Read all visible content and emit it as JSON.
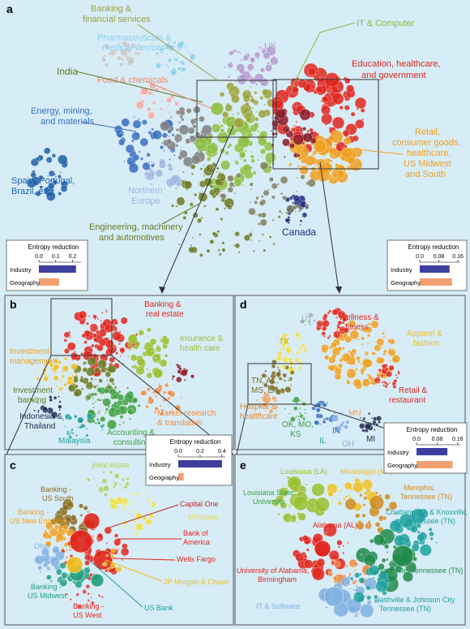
{
  "colors": {
    "background": "#d6ecf6",
    "industry_bar": "#3d3f9e",
    "geography_bar": "#f0a070",
    "frame": "#555555"
  },
  "panels": {
    "a": {
      "label": "a",
      "annotations": [
        {
          "text": "Banking &",
          "color": "#9aa33a"
        },
        {
          "text": "financial services",
          "color": "#9aa33a"
        },
        {
          "text": "IT & Computer",
          "color": "#8db83a"
        },
        {
          "text": "Pharmaceuticals &",
          "color": "#8fd0ea"
        },
        {
          "text": "medical devices",
          "color": "#8fd0ea"
        },
        {
          "text": "UK",
          "color": "#b39ad0"
        },
        {
          "text": "India",
          "color": "#5a7a1a"
        },
        {
          "text": "Food & chemicals",
          "color": "#f08a70"
        },
        {
          "text": "Education, healthcare,",
          "color": "#e0261d"
        },
        {
          "text": "and government",
          "color": "#e0261d"
        },
        {
          "text": "Energy, mining,",
          "color": "#3a6fc0"
        },
        {
          "text": "and materials",
          "color": "#3a6fc0"
        },
        {
          "text": "Retail,",
          "color": "#f0a020"
        },
        {
          "text": "consumer goods,",
          "color": "#f0a020"
        },
        {
          "text": "healthcare,",
          "color": "#f0a020"
        },
        {
          "text": "US Midwest",
          "color": "#f0a020"
        },
        {
          "text": "and South",
          "color": "#f0a020"
        },
        {
          "text": "Spain, Portugal,",
          "color": "#1f5fa8"
        },
        {
          "text": "Brazil, etc.",
          "color": "#1f5fa8"
        },
        {
          "text": "Northern",
          "color": "#9fb6e0"
        },
        {
          "text": "Europe",
          "color": "#9fb6e0"
        },
        {
          "text": "Canada",
          "color": "#1e2a80"
        },
        {
          "text": "Engineering, machinery",
          "color": "#6b7a22"
        },
        {
          "text": "and automotives",
          "color": "#6b7a22"
        }
      ]
    },
    "b": {
      "label": "b",
      "annotations": [
        {
          "text": "Banking &",
          "color": "#e0261d"
        },
        {
          "text": "real estate",
          "color": "#e0261d"
        },
        {
          "text": "Insurance &",
          "color": "#9ac030"
        },
        {
          "text": "health care",
          "color": "#9ac030"
        },
        {
          "text": "Investment",
          "color": "#f0a020"
        },
        {
          "text": "management",
          "color": "#f0a020"
        },
        {
          "text": "Investment",
          "color": "#5a7a1a"
        },
        {
          "text": "banking",
          "color": "#5a7a1a"
        },
        {
          "text": "Indonesia &",
          "color": "#1e2a50"
        },
        {
          "text": "Thailand",
          "color": "#1e2a50"
        },
        {
          "text": "Market research",
          "color": "#f08a40"
        },
        {
          "text": "& translation",
          "color": "#f08a40"
        },
        {
          "text": "Malaysia",
          "color": "#20a0a0"
        },
        {
          "text": "Accounting &",
          "color": "#40a040"
        },
        {
          "text": "consulting",
          "color": "#40a040"
        }
      ]
    },
    "c": {
      "label": "c",
      "annotations": [
        {
          "text": "Real estate",
          "color": "#b0d060"
        },
        {
          "text": "Banking -",
          "color": "#8a6a20"
        },
        {
          "text": "US South",
          "color": "#8a6a20"
        },
        {
          "text": "Capital One",
          "color": "#c0282a"
        },
        {
          "text": "Mortgage",
          "color": "#f0e040"
        },
        {
          "text": "Banking -",
          "color": "#f0a020"
        },
        {
          "text": "US New England",
          "color": "#f0a020"
        },
        {
          "text": "Bank of",
          "color": "#e0261d"
        },
        {
          "text": "America",
          "color": "#e0261d"
        },
        {
          "text": "Ohio",
          "color": "#80b0e0"
        },
        {
          "text": "Wells Fargo",
          "color": "#e0261d"
        },
        {
          "text": "Banking -",
          "color": "#20a080"
        },
        {
          "text": "US Midwest",
          "color": "#20a080"
        },
        {
          "text": "JP Morgan & Chase",
          "color": "#f0c020"
        },
        {
          "text": "Banking -",
          "color": "#e0261d"
        },
        {
          "text": "US West",
          "color": "#e0261d"
        },
        {
          "text": "US Bank",
          "color": "#20a0a0"
        }
      ]
    },
    "d": {
      "label": "d",
      "annotations": [
        {
          "text": "UT",
          "color": "#9aaabb"
        },
        {
          "text": "Wellness &",
          "color": "#e0261d"
        },
        {
          "text": "fitness",
          "color": "#e0261d"
        },
        {
          "text": "TX",
          "color": "#d0a020"
        },
        {
          "text": "Apparel &",
          "color": "#f0c020"
        },
        {
          "text": "fashion",
          "color": "#f0c020"
        },
        {
          "text": "TN, AL,",
          "color": "#7a6a20"
        },
        {
          "text": "MS, LA",
          "color": "#7a6a20"
        },
        {
          "text": "Retail &",
          "color": "#e0261d"
        },
        {
          "text": "restaurant",
          "color": "#e0261d"
        },
        {
          "text": "Hospital &",
          "color": "#e08a30"
        },
        {
          "text": "healthcare",
          "color": "#e08a30"
        },
        {
          "text": "MN",
          "color": "#f0a070"
        },
        {
          "text": "OK, MO,",
          "color": "#40a040"
        },
        {
          "text": "KS",
          "color": "#40a040"
        },
        {
          "text": "IN",
          "color": "#3a6fc0"
        },
        {
          "text": "IL",
          "color": "#20a0a0"
        },
        {
          "text": "OH",
          "color": "#80b0e0"
        },
        {
          "text": "MI",
          "color": "#1e2a50"
        }
      ]
    },
    "e": {
      "label": "e",
      "annotations": [
        {
          "text": "Louisiana (LA)",
          "color": "#9ac030"
        },
        {
          "text": "Mississippi (MS)",
          "color": "#f0c020"
        },
        {
          "text": "Louisiana State",
          "color": "#40a040"
        },
        {
          "text": "University",
          "color": "#40a040"
        },
        {
          "text": "Memphis,",
          "color": "#d08a20"
        },
        {
          "text": "Tennessee (TN)",
          "color": "#d08a20"
        },
        {
          "text": "Chattanooga & Knoxville,",
          "color": "#20a0a0"
        },
        {
          "text": "Tennessee (TN)",
          "color": "#20a0a0"
        },
        {
          "text": "Alabama (AL)",
          "color": "#e0261d"
        },
        {
          "text": "University of Alabama,",
          "color": "#e0261d"
        },
        {
          "text": "Birmingham",
          "color": "#e0261d"
        },
        {
          "text": "Nashville, Tennessee (TN)",
          "color": "#208a4a"
        },
        {
          "text": "IT & Software",
          "color": "#80b0e0"
        },
        {
          "text": "Nashville & Johnson City",
          "color": "#20a0a0"
        },
        {
          "text": "Tennessee (TN)",
          "color": "#20a0a0"
        }
      ]
    }
  },
  "chart_data": [
    {
      "type": "bar",
      "panel": "a (left)",
      "title": "Entropy reduction",
      "categories": [
        "Industry",
        "Geography"
      ],
      "values": [
        0.22,
        0.12
      ],
      "xlim": [
        0,
        0.25
      ],
      "ticks": [
        "0.0",
        "0.1",
        "0.2"
      ],
      "tick_values": [
        0,
        0.1,
        0.2
      ]
    },
    {
      "type": "bar",
      "panel": "a (right)",
      "title": "Entropy reduction",
      "categories": [
        "Industry",
        "Geography"
      ],
      "values": [
        0.125,
        0.135
      ],
      "xlim": [
        0,
        0.17
      ],
      "ticks": [
        "0.0",
        "0.08",
        "0.16"
      ],
      "tick_values": [
        0,
        0.08,
        0.16
      ]
    },
    {
      "type": "bar",
      "panel": "b",
      "title": "Entropy reduction",
      "categories": [
        "Industry",
        "Geography"
      ],
      "values": [
        0.4,
        0.05
      ],
      "xlim": [
        0,
        0.43
      ],
      "ticks": [
        "0.0",
        "0.2",
        "0.4"
      ],
      "tick_values": [
        0,
        0.2,
        0.4
      ]
    },
    {
      "type": "bar",
      "panel": "d",
      "title": "Entropy reduction",
      "categories": [
        "Industry",
        "Geography"
      ],
      "values": [
        0.12,
        0.14
      ],
      "xlim": [
        0,
        0.17
      ],
      "ticks": [
        "0.0",
        "0.08",
        "0.16"
      ],
      "tick_values": [
        0,
        0.08,
        0.16
      ]
    }
  ]
}
